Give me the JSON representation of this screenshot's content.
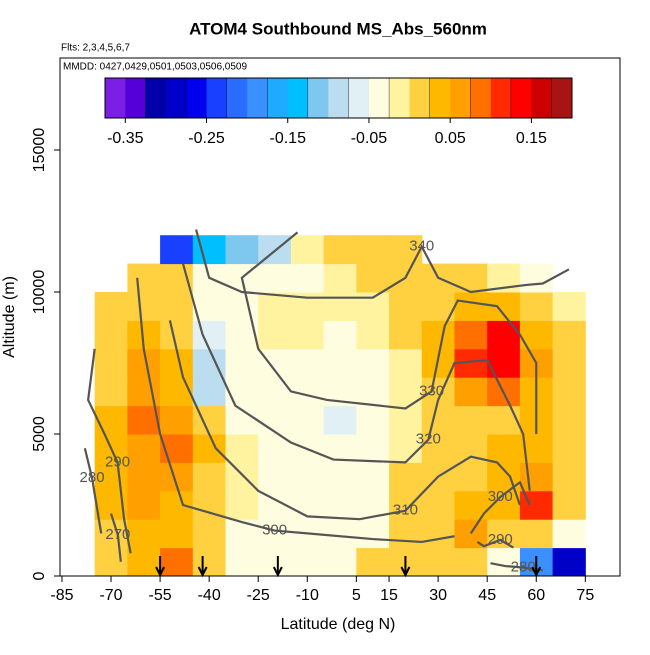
{
  "chart_data": {
    "type": "heatmap",
    "title": "ATOM4 Southbound MS_Abs_560nm",
    "subtitle": "Flts: 2,3,4,5,6,7",
    "annotation": "MMDD: 0427,0429,0501,0503,0506,0509",
    "x_label": "Latitude (deg N)",
    "y_label": "Altitude (m)",
    "xlim": [
      -85.6,
      85.6
    ],
    "ylim": [
      0,
      18240
    ],
    "xticks": [
      -85,
      -70,
      -55,
      -40,
      -25,
      -10,
      5,
      15,
      30,
      45,
      60,
      75
    ],
    "yticks": [
      0,
      5000,
      10000,
      15000
    ],
    "x_edges": [
      -75,
      -65,
      -55,
      -45,
      -35,
      -25,
      -15,
      -5,
      5,
      15,
      25,
      35,
      45,
      55,
      65,
      75
    ],
    "y_edges": [
      0,
      1000,
      2000,
      3000,
      4000,
      5000,
      6000,
      7000,
      8000,
      9000,
      10000,
      11000,
      12000
    ],
    "values": [
      [
        0.0,
        0.03,
        0.08,
        0.02,
        -0.04,
        -0.03,
        -0.05,
        -0.04,
        0.0,
        0.01,
        0.0,
        0.02,
        -0.05,
        -0.2,
        -0.3
      ],
      [
        0.02,
        0.04,
        0.03,
        0.0,
        -0.03,
        -0.04,
        -0.05,
        -0.05,
        -0.03,
        0.0,
        0.01,
        0.06,
        0.02,
        0.0,
        -0.05
      ],
      [
        0.03,
        0.05,
        0.04,
        0.01,
        -0.02,
        -0.03,
        -0.04,
        -0.05,
        -0.03,
        0.0,
        0.02,
        0.03,
        0.03,
        0.1,
        0.02
      ],
      [
        0.04,
        0.06,
        0.05,
        0.02,
        -0.02,
        -0.03,
        -0.04,
        -0.05,
        -0.03,
        0.0,
        0.02,
        0.02,
        0.04,
        0.05,
        0.02
      ],
      [
        0.04,
        0.07,
        0.09,
        0.03,
        -0.02,
        -0.03,
        -0.04,
        -0.05,
        -0.04,
        -0.01,
        0.01,
        0.02,
        0.03,
        0.04,
        0.02
      ],
      [
        0.03,
        0.08,
        0.07,
        0.02,
        -0.03,
        -0.04,
        -0.05,
        -0.06,
        -0.05,
        -0.02,
        0.0,
        0.01,
        0.02,
        0.03,
        0.0
      ],
      [
        0.02,
        0.06,
        0.04,
        -0.08,
        -0.04,
        -0.05,
        -0.05,
        -0.05,
        -0.04,
        -0.02,
        0.02,
        0.07,
        0.09,
        0.04,
        0.0
      ],
      [
        0.02,
        0.05,
        0.03,
        -0.1,
        -0.04,
        -0.03,
        -0.03,
        -0.04,
        -0.03,
        -0.01,
        0.04,
        0.1,
        0.14,
        0.06,
        0.0
      ],
      [
        0.01,
        0.04,
        0.02,
        -0.06,
        -0.03,
        -0.02,
        -0.02,
        -0.03,
        -0.02,
        0.0,
        0.03,
        0.08,
        0.13,
        0.03,
        0.0
      ],
      [
        0.0,
        0.02,
        0.01,
        -0.04,
        -0.03,
        -0.02,
        -0.02,
        -0.02,
        -0.01,
        0.0,
        0.01,
        0.03,
        0.03,
        0.02,
        -0.01
      ],
      [
        null,
        0.01,
        0.0,
        -0.05,
        -0.05,
        -0.04,
        -0.03,
        -0.02,
        0.0,
        0.01,
        0.0,
        0.0,
        -0.02,
        -0.04,
        null
      ],
      [
        null,
        null,
        -0.25,
        -0.15,
        -0.12,
        -0.08,
        -0.02,
        0.0,
        0.01,
        0.0,
        null,
        null,
        null,
        null,
        null
      ]
    ],
    "colorbar": {
      "lim": [
        -0.375,
        0.2
      ],
      "ticks": [
        -0.35,
        -0.25,
        -0.15,
        -0.05,
        0.05,
        0.15
      ],
      "colors": [
        "#7b1fe6",
        "#5500d8",
        "#0000a8",
        "#0000c8",
        "#0000ec",
        "#1a40ff",
        "#2a6cff",
        "#3a90ff",
        "#1eaaff",
        "#00bfff",
        "#7ec8f0",
        "#bcdcf0",
        "#e0f0f4",
        "#fffde0",
        "#fff3a0",
        "#ffd040",
        "#ffb800",
        "#ffa000",
        "#ff7000",
        "#ff2a00",
        "#ff0000",
        "#cc0000",
        "#a81414"
      ]
    },
    "contour_color": "#555555",
    "contours": [
      {
        "level": 340,
        "x": [
          -44,
          -40,
          -30,
          -10,
          10,
          20,
          25,
          30,
          40,
          57,
          62,
          70
        ],
        "y": [
          12200,
          10500,
          10000,
          9800,
          9800,
          10500,
          11600,
          10500,
          10000,
          10250,
          10300,
          10800
        ]
      },
      {
        "level": 330,
        "x": [
          -13,
          -30,
          -25,
          -15,
          -4,
          20,
          28,
          32,
          36,
          48,
          55,
          60,
          60
        ],
        "y": [
          12100,
          10500,
          8000,
          6500,
          6200,
          5900,
          6500,
          8800,
          9700,
          9500,
          8500,
          7500,
          5000
        ]
      },
      {
        "level": 320,
        "x": [
          -48,
          -42,
          -32,
          -15,
          -2,
          20,
          27,
          30,
          35,
          45,
          52,
          56,
          58
        ],
        "y": [
          11000,
          8500,
          6000,
          4700,
          4100,
          4000,
          4800,
          6200,
          7500,
          7600,
          6000,
          5000,
          3000
        ]
      },
      {
        "level": 310,
        "x": [
          -52,
          -48,
          -38,
          -25,
          -10,
          6,
          20,
          30,
          40,
          48,
          52,
          55
        ],
        "y": [
          9000,
          7000,
          4500,
          3000,
          2100,
          2000,
          2300,
          3500,
          4200,
          4000,
          3500,
          2500
        ]
      },
      {
        "level": 300,
        "x": [
          -62,
          -60,
          -55,
          -48,
          -30,
          -20,
          -10,
          10,
          25,
          35
        ],
        "y": [
          10500,
          8000,
          5000,
          2500,
          1900,
          1600,
          1500,
          1300,
          1200,
          1400
        ]
      },
      {
        "level": 290,
        "x": [
          -75,
          -77,
          -72,
          -68,
          -66,
          -64
        ],
        "y": [
          8000,
          6200,
          5000,
          4000,
          2000,
          800
        ]
      },
      {
        "level": 280,
        "x": [
          -78,
          -75.8,
          -73
        ],
        "y": [
          4500,
          3450,
          1500
        ]
      },
      {
        "level": 270,
        "x": [
          -70,
          -67.9,
          -67
        ],
        "y": [
          2200,
          1440,
          500
        ]
      },
      {
        "level": 300,
        "x": [
          40,
          44,
          49,
          55,
          58
        ],
        "y": [
          1500,
          2200,
          2780,
          3300,
          2500
        ]
      },
      {
        "level": 290,
        "x": [
          42,
          44,
          49,
          53
        ],
        "y": [
          1200,
          1050,
          1270,
          1000
        ]
      },
      {
        "level": 280,
        "x": [
          46,
          50.5,
          56,
          62
        ],
        "y": [
          450,
          350,
          300,
          200
        ]
      }
    ],
    "markers": [
      -55,
      -42,
      -19,
      20,
      60
    ]
  }
}
